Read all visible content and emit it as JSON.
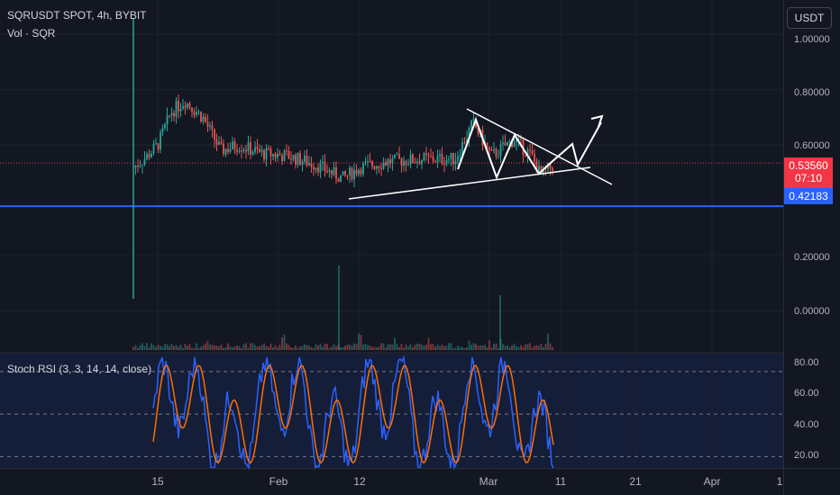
{
  "header": {
    "symbol_line": "SQRUSDT SPOT, 4h, BYBIT",
    "volume_line": "Vol · SQR"
  },
  "currency_button": "USDT",
  "price_axis": {
    "labels": [
      "1.00000",
      "0.80000",
      "0.60000",
      "0.20000",
      "0.00000"
    ]
  },
  "current_price": {
    "value": "0.53560",
    "countdown": "07:10",
    "color": "#f23645"
  },
  "support_level": {
    "value": "0.42183",
    "color": "#2962ff"
  },
  "rsi_panel": {
    "label": "Stoch RSI (3, 3, 14, 14, close)",
    "axis_labels": [
      "80.00",
      "60.00",
      "40.00",
      "20.00"
    ],
    "k_color": "#2962ff",
    "d_color": "#ff6d00"
  },
  "time_axis": {
    "labels": [
      "15",
      "Feb",
      "12",
      "Mar",
      "11",
      "21",
      "Apr",
      "1"
    ]
  },
  "colors": {
    "background": "#131722",
    "up": "#26a69a",
    "down": "#ef5350",
    "drawing": "#ffffff"
  },
  "chart_data": {
    "type": "candlestick",
    "price_ylim": [
      0.0,
      1.0
    ],
    "current_price": 0.5356,
    "support": 0.42183,
    "rsi_ylim": [
      20,
      85
    ],
    "rsi_levels": [
      80,
      50,
      20
    ]
  }
}
